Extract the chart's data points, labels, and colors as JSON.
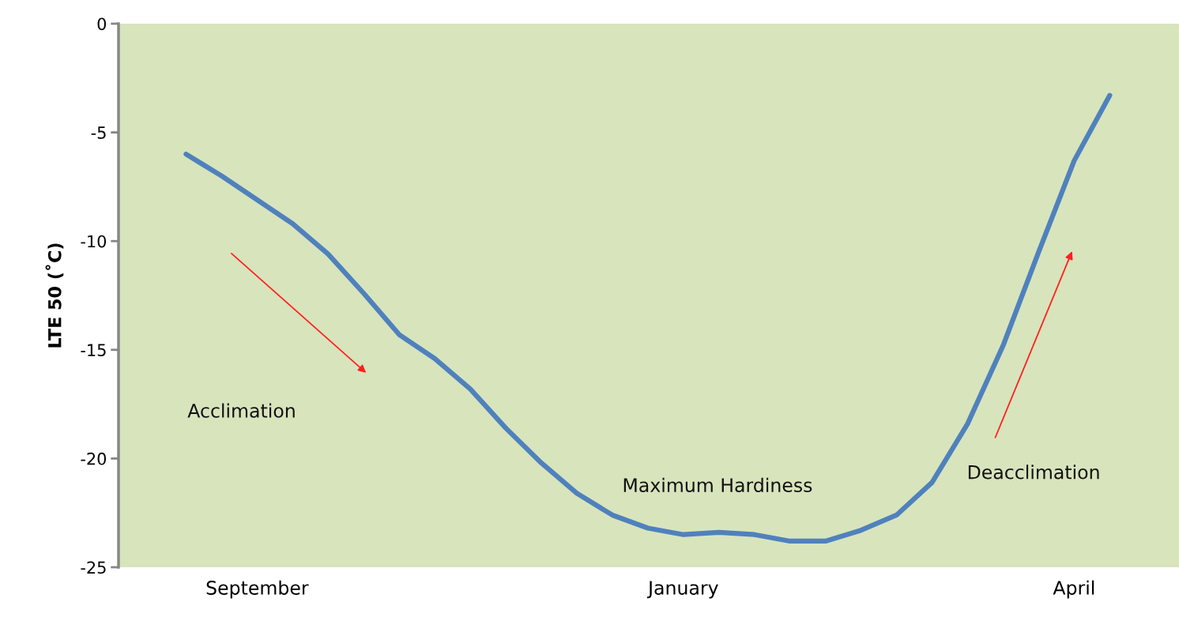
{
  "chart_data": {
    "type": "line",
    "ylabel": "LTE 50 (˚C)",
    "categories": [
      null,
      null,
      "September",
      null,
      null,
      null,
      null,
      null,
      null,
      null,
      null,
      null,
      null,
      null,
      "January",
      null,
      null,
      null,
      null,
      null,
      null,
      null,
      null,
      null,
      null,
      "April",
      null
    ],
    "series": [
      {
        "color": "#4f81bd",
        "values": [
          -6.0,
          -7.0,
          -8.1,
          -9.2,
          -10.6,
          -12.4,
          -14.3,
          -15.4,
          -16.8,
          -18.6,
          -20.2,
          -21.6,
          -22.6,
          -23.2,
          -23.5,
          -23.4,
          -23.5,
          -23.8,
          -23.8,
          -23.3,
          -22.6,
          -21.1,
          -18.4,
          -14.8,
          -10.5,
          -6.3,
          -3.3
        ]
      }
    ],
    "ylim": [
      -25,
      0
    ],
    "yticks": [
      0,
      -5,
      -10,
      -15,
      -20,
      -25
    ],
    "annotations": [
      "Acclimation",
      "Maximum Hardiness",
      "Deacclimation"
    ],
    "grid": false,
    "legend": false,
    "marker": "none",
    "line_style": "solid"
  }
}
